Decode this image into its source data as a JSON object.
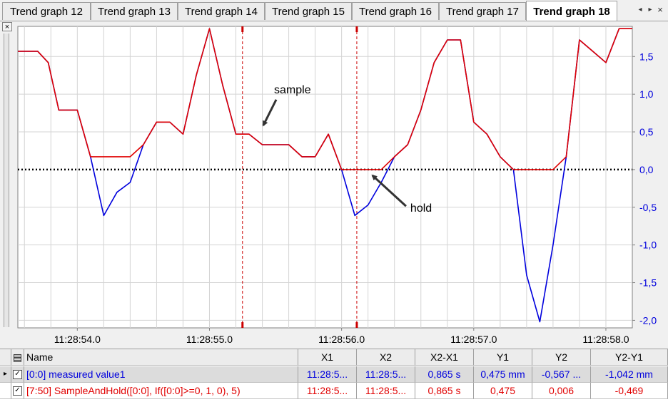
{
  "tabs": [
    {
      "label": "Trend graph 12",
      "active": false
    },
    {
      "label": "Trend graph 13",
      "active": false
    },
    {
      "label": "Trend graph 14",
      "active": false
    },
    {
      "label": "Trend graph 15",
      "active": false
    },
    {
      "label": "Trend graph 16",
      "active": false
    },
    {
      "label": "Trend graph 17",
      "active": false
    },
    {
      "label": "Trend graph 18",
      "active": true
    }
  ],
  "tab_nav": {
    "prev": "◂",
    "next": "▸",
    "close": "×"
  },
  "panel": {
    "close": "×"
  },
  "colors": {
    "series_measured": "#0000dd",
    "series_sample_hold": "#e00000",
    "cursor": "#cc0000",
    "grid": "#d4d4d4",
    "zero_line": "#000000",
    "axis_text": "#0000dd"
  },
  "chart_data": {
    "type": "line",
    "title": "",
    "xlabel": "",
    "ylabel": "",
    "x_ticks": [
      "11:28:54.0",
      "11:28:55.0",
      "11:28:56.0",
      "11:28:57.0",
      "11:28:58.0"
    ],
    "x_tick_seconds": [
      54.0,
      55.0,
      56.0,
      57.0,
      58.0
    ],
    "xlim_seconds": [
      53.55,
      58.2
    ],
    "ylim": [
      -2.1,
      1.9
    ],
    "y_ticks": [
      -2.0,
      -1.5,
      -1.0,
      -0.5,
      0.0,
      0.5,
      1.0,
      1.5
    ],
    "y_tick_labels": [
      "-2,0",
      "-1,5",
      "-1,0",
      "-0,5",
      "0,0",
      "0,5",
      "1,0",
      "1,5"
    ],
    "grid": true,
    "zero_line": true,
    "cursors_seconds": [
      55.25,
      56.115
    ],
    "annotations": [
      {
        "text": "sample",
        "x": 55.3,
        "y": 0.55
      },
      {
        "text": "hold",
        "x": 56.25,
        "y": -0.05
      }
    ],
    "series": [
      {
        "name": "[0:0] measured value1",
        "x": [
          53.55,
          53.7,
          53.78,
          53.86,
          54.0,
          54.1,
          54.2,
          54.3,
          54.4,
          54.5,
          54.6,
          54.7,
          54.8,
          54.9,
          55.0,
          55.1,
          55.2,
          55.3,
          55.4,
          55.5,
          55.6,
          55.7,
          55.8,
          55.9,
          56.0,
          56.1,
          56.2,
          56.3,
          56.4,
          56.5,
          56.6,
          56.7,
          56.8,
          56.9,
          57.0,
          57.1,
          57.2,
          57.3,
          57.4,
          57.5,
          57.6,
          57.7,
          57.8,
          57.9,
          58.0,
          58.1,
          58.2
        ],
        "y": [
          1.57,
          1.57,
          1.42,
          0.79,
          0.79,
          0.17,
          -0.61,
          -0.3,
          -0.17,
          0.33,
          0.63,
          0.63,
          0.47,
          1.25,
          1.87,
          1.12,
          0.47,
          0.47,
          0.33,
          0.33,
          0.33,
          0.17,
          0.17,
          0.47,
          0.0,
          -0.61,
          -0.47,
          -0.17,
          0.17,
          0.33,
          0.79,
          1.42,
          1.72,
          1.72,
          0.63,
          0.47,
          0.17,
          0.0,
          -1.4,
          -2.02,
          -1.0,
          0.17,
          1.72,
          1.57,
          1.42,
          1.87,
          1.87
        ]
      },
      {
        "name": "[7:50] SampleAndHold([0:0], If([0:0]>=0, 1, 0), 5)",
        "x": [
          53.55,
          53.7,
          53.78,
          53.86,
          54.0,
          54.1,
          54.2,
          54.3,
          54.4,
          54.5,
          54.6,
          54.7,
          54.8,
          54.9,
          55.0,
          55.1,
          55.2,
          55.3,
          55.4,
          55.5,
          55.6,
          55.7,
          55.8,
          55.9,
          56.0,
          56.1,
          56.2,
          56.3,
          56.4,
          56.5,
          56.6,
          56.7,
          56.8,
          56.9,
          57.0,
          57.1,
          57.2,
          57.3,
          57.4,
          57.5,
          57.6,
          57.7,
          57.8,
          57.9,
          58.0,
          58.1,
          58.2
        ],
        "y": [
          1.57,
          1.57,
          1.42,
          0.79,
          0.79,
          0.17,
          0.17,
          0.17,
          0.17,
          0.33,
          0.63,
          0.63,
          0.47,
          1.25,
          1.87,
          1.12,
          0.47,
          0.47,
          0.33,
          0.33,
          0.33,
          0.17,
          0.17,
          0.47,
          0.0,
          0.0,
          0.0,
          0.0,
          0.17,
          0.33,
          0.79,
          1.42,
          1.72,
          1.72,
          0.63,
          0.47,
          0.17,
          0.0,
          0.0,
          0.0,
          0.0,
          0.17,
          1.72,
          1.57,
          1.42,
          1.87,
          1.87
        ]
      }
    ]
  },
  "table": {
    "headers": {
      "name": "Name",
      "x1": "X1",
      "x2": "X2",
      "dx": "X2-X1",
      "y1": "Y1",
      "y2": "Y2",
      "dy": "Y2-Y1"
    },
    "rows": [
      {
        "indicator": "▸",
        "name": "[0:0] measured value1",
        "x1": "11:28:5...",
        "x2": "11:28:5...",
        "dx": "0,865 s",
        "y1": "0,475 mm",
        "y2": "-0,567 ...",
        "dy": "-1,042 mm",
        "color": "#0000dd"
      },
      {
        "indicator": "",
        "name": "[7:50] SampleAndHold([0:0], If([0:0]>=0, 1, 0), 5)",
        "x1": "11:28:5...",
        "x2": "11:28:5...",
        "dx": "0,865 s",
        "y1": "0,475",
        "y2": "0,006",
        "dy": "-0,469",
        "color": "#e00000"
      }
    ]
  }
}
